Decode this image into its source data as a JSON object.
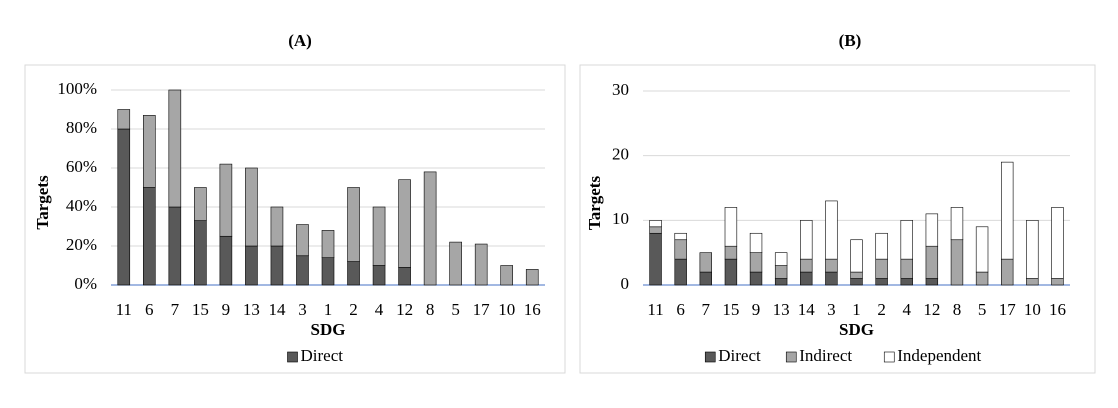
{
  "chart_data": [
    {
      "type": "bar",
      "stacked": true,
      "title": "(A)",
      "xlabel": "SDG",
      "ylabel": "Targets",
      "categories": [
        "11",
        "6",
        "7",
        "15",
        "9",
        "13",
        "14",
        "3",
        "1",
        "2",
        "4",
        "12",
        "8",
        "5",
        "17",
        "10",
        "16"
      ],
      "series": [
        {
          "name": "Direct",
          "color": "#595959",
          "values": [
            80,
            50,
            40,
            33,
            25,
            20,
            20,
            15,
            14,
            12,
            10,
            9,
            0,
            0,
            0,
            0,
            0
          ]
        },
        {
          "color": "#a6a6a6",
          "values": [
            10,
            37,
            60,
            17,
            37,
            40,
            20,
            16,
            14,
            38,
            30,
            45,
            58,
            22,
            21,
            10,
            8
          ]
        }
      ],
      "ylim": [
        0,
        100
      ],
      "yticks": [
        {
          "value": 0,
          "label": "0%"
        },
        {
          "value": 20,
          "label": "20%"
        },
        {
          "value": 40,
          "label": "40%"
        },
        {
          "value": 60,
          "label": "60%"
        },
        {
          "value": 80,
          "label": "80%"
        },
        {
          "value": 100,
          "label": "100%"
        }
      ],
      "grid": true
    },
    {
      "type": "bar",
      "stacked": true,
      "title": "(B)",
      "xlabel": "SDG",
      "ylabel": "Targets",
      "categories": [
        "11",
        "6",
        "7",
        "15",
        "9",
        "13",
        "14",
        "3",
        "1",
        "2",
        "4",
        "12",
        "8",
        "5",
        "17",
        "10",
        "16"
      ],
      "series": [
        {
          "name": "Direct",
          "color": "#595959",
          "values": [
            8,
            4,
            2,
            4,
            2,
            1,
            2,
            2,
            1,
            1,
            1,
            1,
            0,
            0,
            0,
            0,
            0
          ]
        },
        {
          "name": "Indirect",
          "color": "#a6a6a6",
          "values": [
            1,
            3,
            3,
            2,
            3,
            2,
            2,
            2,
            1,
            3,
            3,
            5,
            7,
            2,
            4,
            1,
            1
          ]
        },
        {
          "name": "Independent",
          "color": "#ffffff",
          "values": [
            1,
            1,
            0,
            6,
            3,
            2,
            6,
            9,
            5,
            4,
            6,
            5,
            5,
            7,
            15,
            9,
            11
          ]
        }
      ],
      "ylim": [
        0,
        30
      ],
      "yticks": [
        0,
        10,
        20,
        30
      ],
      "grid": true
    }
  ]
}
